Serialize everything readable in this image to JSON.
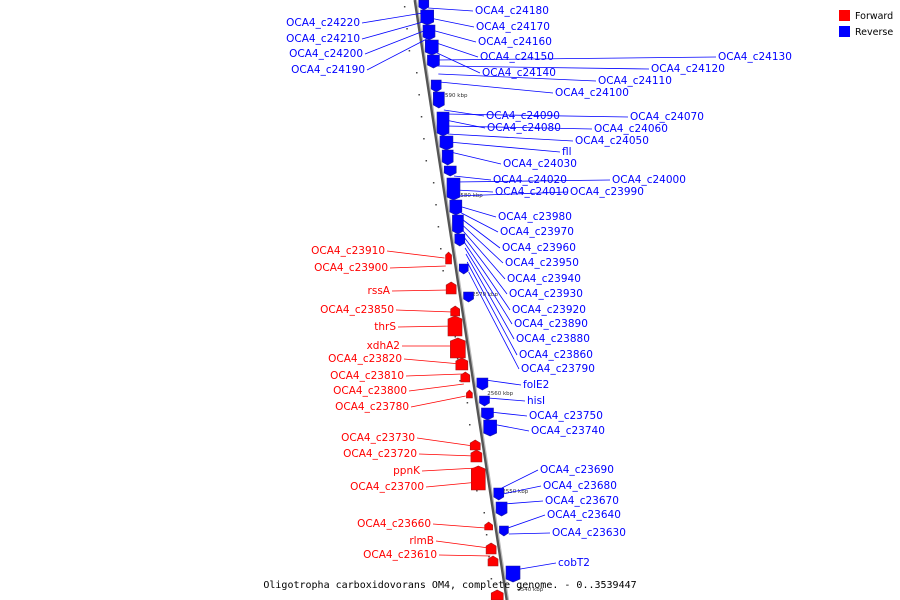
{
  "caption": "Oligotropha carboxidovorans OM4, complete genome. - 0..3539447",
  "legend": [
    {
      "label": "Forward",
      "color": "#ff0000"
    },
    {
      "label": "Reverse",
      "color": "#0000ff"
    }
  ],
  "colors": {
    "forward": "#ff0000",
    "reverse": "#0000ff",
    "backbone": "#888888"
  },
  "ticks": [
    "2590 kbp",
    "2580 kbp",
    "2570 kbp",
    "2560 kbp",
    "2550 kbp",
    "2540 kbp"
  ],
  "genes": [
    {
      "label": "OCA4_c24220",
      "strand": "reverse"
    },
    {
      "label": "OCA4_c24210",
      "strand": "reverse"
    },
    {
      "label": "OCA4_c24200",
      "strand": "reverse"
    },
    {
      "label": "OCA4_c24190",
      "strand": "reverse"
    },
    {
      "label": "OCA4_c24180",
      "strand": "reverse"
    },
    {
      "label": "OCA4_c24170",
      "strand": "reverse"
    },
    {
      "label": "OCA4_c24160",
      "strand": "reverse"
    },
    {
      "label": "OCA4_c24150",
      "strand": "reverse"
    },
    {
      "label": "OCA4_c24140",
      "strand": "reverse"
    },
    {
      "label": "OCA4_c24130",
      "strand": "reverse"
    },
    {
      "label": "OCA4_c24120",
      "strand": "reverse"
    },
    {
      "label": "OCA4_c24110",
      "strand": "reverse"
    },
    {
      "label": "OCA4_c24100",
      "strand": "reverse"
    },
    {
      "label": "OCA4_c24090",
      "strand": "reverse"
    },
    {
      "label": "OCA4_c24070",
      "strand": "reverse"
    },
    {
      "label": "OCA4_c24080",
      "strand": "reverse"
    },
    {
      "label": "OCA4_c24060",
      "strand": "reverse"
    },
    {
      "label": "OCA4_c24050",
      "strand": "reverse"
    },
    {
      "label": "fll",
      "strand": "reverse"
    },
    {
      "label": "OCA4_c24030",
      "strand": "reverse"
    },
    {
      "label": "OCA4_c24020",
      "strand": "reverse"
    },
    {
      "label": "OCA4_c24000",
      "strand": "reverse"
    },
    {
      "label": "OCA4_c24010",
      "strand": "reverse"
    },
    {
      "label": "OCA4_c23990",
      "strand": "reverse"
    },
    {
      "label": "OCA4_c23980",
      "strand": "reverse"
    },
    {
      "label": "OCA4_c23970",
      "strand": "reverse"
    },
    {
      "label": "OCA4_c23960",
      "strand": "reverse"
    },
    {
      "label": "OCA4_c23950",
      "strand": "reverse"
    },
    {
      "label": "OCA4_c23940",
      "strand": "reverse"
    },
    {
      "label": "OCA4_c23930",
      "strand": "reverse"
    },
    {
      "label": "OCA4_c23920",
      "strand": "reverse"
    },
    {
      "label": "OCA4_c23890",
      "strand": "reverse"
    },
    {
      "label": "OCA4_c23880",
      "strand": "reverse"
    },
    {
      "label": "OCA4_c23860",
      "strand": "reverse"
    },
    {
      "label": "OCA4_c23790",
      "strand": "reverse"
    },
    {
      "label": "folE2",
      "strand": "reverse"
    },
    {
      "label": "hisI",
      "strand": "reverse"
    },
    {
      "label": "OCA4_c23750",
      "strand": "reverse"
    },
    {
      "label": "OCA4_c23740",
      "strand": "reverse"
    },
    {
      "label": "OCA4_c23690",
      "strand": "reverse"
    },
    {
      "label": "OCA4_c23680",
      "strand": "reverse"
    },
    {
      "label": "OCA4_c23670",
      "strand": "reverse"
    },
    {
      "label": "OCA4_c23640",
      "strand": "reverse"
    },
    {
      "label": "OCA4_c23630",
      "strand": "reverse"
    },
    {
      "label": "cobT2",
      "strand": "reverse"
    },
    {
      "label": "OCA4_c23910",
      "strand": "forward"
    },
    {
      "label": "OCA4_c23900",
      "strand": "forward"
    },
    {
      "label": "rssA",
      "strand": "forward"
    },
    {
      "label": "OCA4_c23850",
      "strand": "forward"
    },
    {
      "label": "thrS",
      "strand": "forward"
    },
    {
      "label": "xdhA2",
      "strand": "forward"
    },
    {
      "label": "OCA4_c23820",
      "strand": "forward"
    },
    {
      "label": "OCA4_c23810",
      "strand": "forward"
    },
    {
      "label": "OCA4_c23800",
      "strand": "forward"
    },
    {
      "label": "OCA4_c23780",
      "strand": "forward"
    },
    {
      "label": "OCA4_c23730",
      "strand": "forward"
    },
    {
      "label": "OCA4_c23720",
      "strand": "forward"
    },
    {
      "label": "ppnK",
      "strand": "forward"
    },
    {
      "label": "OCA4_c23700",
      "strand": "forward"
    },
    {
      "label": "OCA4_c23660",
      "strand": "forward"
    },
    {
      "label": "rlmB",
      "strand": "forward"
    },
    {
      "label": "OCA4_c23610",
      "strand": "forward"
    }
  ]
}
